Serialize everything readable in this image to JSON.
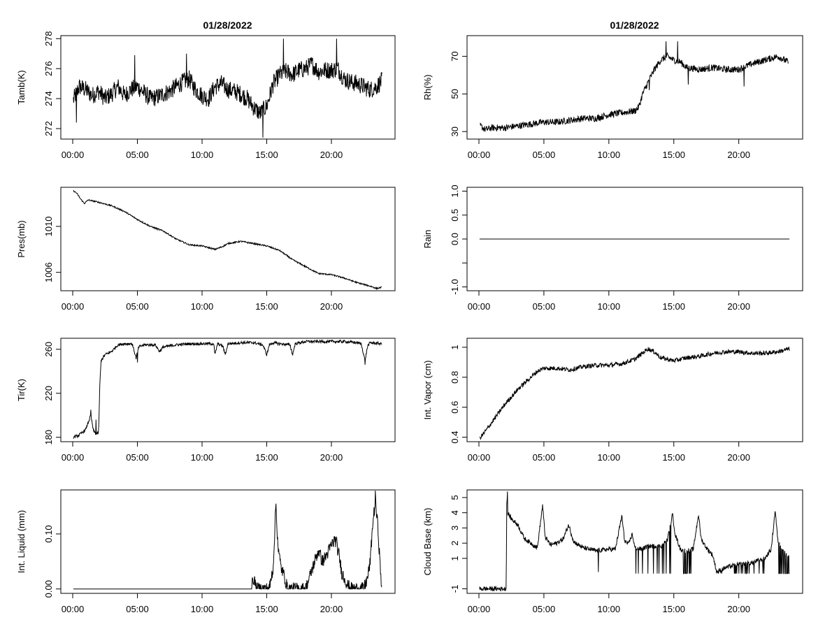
{
  "figure": {
    "titles": [
      "01/28/2022",
      "01/28/2022"
    ]
  },
  "chart_data": [
    {
      "type": "line",
      "ylabel": "Tamb(K)",
      "title": "01/28/2022",
      "xticks": [
        "00:00",
        "05:00",
        "10:00",
        "15:00",
        "20:00"
      ],
      "xlim": [
        0,
        24
      ],
      "ylim": [
        271.3,
        278.2
      ],
      "yticks": [
        272,
        274,
        276,
        278
      ],
      "x": [
        0.05,
        0.5,
        1,
        1.5,
        2,
        2.5,
        3,
        3.5,
        4,
        4.5,
        5,
        5.5,
        6,
        6.5,
        7,
        7.5,
        8,
        8.5,
        9,
        9.5,
        10,
        10.5,
        11,
        11.5,
        12,
        12.5,
        13,
        13.5,
        14,
        14.5,
        15,
        15.5,
        16,
        16.5,
        17,
        17.5,
        18,
        18.5,
        19,
        19.5,
        20,
        20.5,
        21,
        21.5,
        22,
        22.5,
        23,
        23.5,
        23.9
      ],
      "y": [
        273.9,
        274.8,
        274.6,
        274.2,
        274.5,
        274.0,
        274.3,
        274.8,
        274.2,
        274.6,
        274.8,
        274.4,
        274.0,
        274.1,
        274.3,
        274.5,
        274.8,
        275.1,
        275.3,
        274.6,
        274.2,
        274.0,
        274.8,
        275.0,
        274.6,
        274.5,
        274.3,
        274.0,
        273.4,
        273.0,
        273.5,
        275.0,
        275.6,
        275.8,
        275.6,
        275.9,
        276.0,
        276.3,
        275.8,
        275.9,
        275.9,
        276.0,
        275.3,
        275.1,
        275.0,
        274.8,
        274.6,
        274.8,
        275.2
      ],
      "noise": 0.6,
      "spikes": [
        [
          4.8,
          276.9
        ],
        [
          8.8,
          277.0
        ],
        [
          14.7,
          271.4
        ],
        [
          16.3,
          278.0
        ],
        [
          20.4,
          278.0
        ],
        [
          0.3,
          272.4
        ]
      ]
    },
    {
      "type": "line",
      "ylabel": "Rh(%)",
      "title": "01/28/2022",
      "xticks": [
        "00:00",
        "05:00",
        "10:00",
        "15:00",
        "20:00"
      ],
      "xlim": [
        0,
        24
      ],
      "ylim": [
        26,
        81
      ],
      "yticks": [
        30,
        50,
        70
      ],
      "x": [
        0.1,
        0.5,
        1,
        2,
        3,
        4,
        5,
        6,
        7,
        8,
        9,
        10,
        11,
        12,
        12.3,
        12.6,
        13,
        13.5,
        14,
        14.5,
        15,
        15.5,
        16,
        17,
        18,
        19,
        20,
        21,
        22,
        23,
        23.8
      ],
      "y": [
        33,
        31,
        32,
        32,
        33,
        34,
        35,
        35,
        36,
        37,
        37,
        39,
        40,
        41,
        43,
        50,
        56,
        63,
        68,
        70,
        68,
        67,
        64,
        63,
        64,
        63,
        63,
        66,
        68,
        70,
        67
      ],
      "noise": 1.8,
      "spikes": [
        [
          14.4,
          78
        ],
        [
          15.3,
          78
        ],
        [
          13.1,
          52
        ],
        [
          16.1,
          55
        ],
        [
          20.4,
          54
        ]
      ]
    },
    {
      "type": "line",
      "ylabel": "Pres(mb)",
      "xticks": [
        "00:00",
        "05:00",
        "10:00",
        "15:00",
        "20:00"
      ],
      "xlim": [
        0,
        24
      ],
      "ylim": [
        1004.4,
        1013.4
      ],
      "yticks": [
        1006,
        1010
      ],
      "x": [
        0.05,
        0.3,
        0.6,
        0.9,
        1.2,
        2,
        3,
        4,
        5,
        6,
        7,
        8,
        9,
        10,
        11,
        11.5,
        12,
        13,
        14,
        15,
        16,
        17,
        18,
        19,
        20,
        21,
        22,
        23,
        23.5,
        23.9
      ],
      "y": [
        1013.1,
        1012.9,
        1012.4,
        1012.0,
        1012.3,
        1012.1,
        1011.8,
        1011.3,
        1010.6,
        1010.0,
        1009.6,
        1008.9,
        1008.4,
        1008.3,
        1008.0,
        1008.2,
        1008.5,
        1008.7,
        1008.5,
        1008.3,
        1007.9,
        1007.1,
        1006.5,
        1005.9,
        1005.8,
        1005.5,
        1005.1,
        1004.8,
        1004.6,
        1004.7
      ],
      "noise": 0.06
    },
    {
      "type": "line",
      "ylabel": "Rain",
      "xticks": [
        "00:00",
        "05:00",
        "10:00",
        "15:00",
        "20:00"
      ],
      "xlim": [
        0,
        24
      ],
      "ylim": [
        -1.08,
        1.08
      ],
      "yticks": [
        -1.0,
        -0.5,
        0.0,
        0.5,
        1.0
      ],
      "ytick_labels": [
        "-1.0",
        "",
        "0.0",
        "0.5",
        "1.0"
      ],
      "x": [
        0.05,
        23.9
      ],
      "y": [
        0,
        0
      ],
      "noise": 0
    },
    {
      "type": "line",
      "ylabel": "Tir(K)",
      "xticks": [
        "00:00",
        "05:00",
        "10:00",
        "15:00",
        "20:00"
      ],
      "xlim": [
        0,
        24
      ],
      "ylim": [
        176,
        270
      ],
      "yticks": [
        180,
        220,
        260
      ],
      "x": [
        0.05,
        0.5,
        1,
        1.4,
        1.6,
        1.8,
        2.0,
        2.1,
        2.2,
        2.5,
        3,
        3.5,
        4,
        4.6,
        4.9,
        5.1,
        5.5,
        6.4,
        6.7,
        7,
        8,
        9,
        10,
        10.9,
        11.0,
        11.2,
        11.6,
        11.8,
        12,
        13,
        14,
        14.7,
        15.0,
        15.2,
        15.5,
        16,
        16.8,
        17.0,
        17.2,
        18,
        19,
        20,
        21,
        22,
        22.3,
        22.6,
        22.8,
        23,
        23.9
      ],
      "y": [
        180,
        182,
        187,
        200,
        186,
        183,
        184,
        230,
        250,
        255,
        258,
        264,
        265,
        265,
        252,
        262,
        264,
        264,
        258,
        262,
        264,
        265,
        265,
        265,
        255,
        265,
        263,
        255,
        265,
        266,
        266,
        264,
        255,
        264,
        266,
        265,
        264,
        255,
        265,
        267,
        267,
        267,
        267,
        266,
        265,
        250,
        263,
        266,
        265
      ],
      "noise": 1.3,
      "spikes": [
        [
          1.4,
          205
        ],
        [
          1.8,
          196
        ],
        [
          22.6,
          246
        ],
        [
          5.0,
          248
        ]
      ]
    },
    {
      "type": "line",
      "ylabel": "Int. Vapor (cm)",
      "xticks": [
        "00:00",
        "05:00",
        "10:00",
        "15:00",
        "20:00"
      ],
      "xlim": [
        0,
        24
      ],
      "ylim": [
        0.37,
        1.06
      ],
      "yticks": [
        0.4,
        0.6,
        0.8,
        1.0
      ],
      "x": [
        0.05,
        0.5,
        1,
        1.5,
        2,
        2.5,
        3,
        3.5,
        4,
        4.5,
        5,
        6,
        7,
        8,
        9,
        10,
        11,
        12,
        13,
        13.5,
        14,
        15,
        16,
        17,
        18,
        19,
        20,
        21,
        22,
        23,
        23.9
      ],
      "y": [
        0.39,
        0.44,
        0.5,
        0.56,
        0.62,
        0.67,
        0.72,
        0.76,
        0.8,
        0.84,
        0.86,
        0.86,
        0.85,
        0.87,
        0.88,
        0.88,
        0.89,
        0.92,
        0.99,
        0.97,
        0.93,
        0.91,
        0.93,
        0.94,
        0.96,
        0.97,
        0.97,
        0.96,
        0.96,
        0.97,
        0.99
      ],
      "noise": 0.015
    },
    {
      "type": "line",
      "ylabel": "Int. Liquid (mm)",
      "xticks": [
        "00:00",
        "05:00",
        "10:00",
        "15:00",
        "20:00"
      ],
      "xlim": [
        0,
        24
      ],
      "ylim": [
        -0.008,
        0.18
      ],
      "yticks": [
        0.0,
        0.1
      ],
      "ytick_labels": [
        "0.00",
        "0.10"
      ],
      "x": [
        0.05,
        13.8,
        14.0,
        14.2,
        15.2,
        15.5,
        15.7,
        15.9,
        16.1,
        16.4,
        16.6,
        17,
        18,
        18.3,
        18.7,
        19,
        19.3,
        19.6,
        20,
        20.3,
        20.6,
        20.8,
        21,
        21.3,
        21.6,
        22,
        22.5,
        22.8,
        23,
        23.2,
        23.4,
        23.6,
        23.8,
        23.9
      ],
      "y": [
        0,
        0,
        0.02,
        0,
        0,
        0.04,
        0.15,
        0.07,
        0.04,
        0.02,
        0,
        0,
        0,
        0.02,
        0.05,
        0.07,
        0.05,
        0.06,
        0.08,
        0.09,
        0.06,
        0.03,
        0.02,
        0.005,
        0,
        0,
        0,
        0.02,
        0.05,
        0.12,
        0.16,
        0.11,
        0.03,
        0
      ],
      "noise": 0.012,
      "spikes": [
        [
          23.4,
          0.18
        ],
        [
          15.7,
          0.155
        ],
        [
          20.4,
          0.095
        ]
      ]
    },
    {
      "type": "line",
      "ylabel": "Cloud Base (km)",
      "xticks": [
        "00:00",
        "05:00",
        "10:00",
        "15:00",
        "20:00"
      ],
      "xlim": [
        0,
        24
      ],
      "ylim": [
        -1.3,
        5.5
      ],
      "yticks": [
        -1,
        1,
        2,
        3,
        4,
        5
      ],
      "x": [
        0.05,
        2.1,
        2.15,
        2.2,
        2.5,
        3,
        3.5,
        4,
        4.5,
        4.9,
        5.1,
        5.5,
        6,
        6.5,
        6.9,
        7.3,
        8,
        9,
        10,
        10.5,
        11.0,
        11.2,
        11.5,
        11.8,
        12,
        12.5,
        13,
        14,
        14.5,
        14.9,
        15.1,
        15.5,
        16,
        16.5,
        16.9,
        17.1,
        17.5,
        18,
        18.3,
        19,
        20,
        21,
        22,
        22.5,
        22.8,
        23,
        23.5,
        23.9
      ],
      "y": [
        -1,
        -1,
        5.4,
        4.0,
        3.6,
        3.2,
        2.3,
        2.0,
        1.7,
        4.5,
        2.4,
        1.9,
        2.0,
        2.3,
        3.2,
        2.1,
        1.7,
        1.5,
        1.6,
        1.6,
        3.8,
        2.2,
        1.9,
        2.6,
        1.7,
        1.6,
        1.8,
        1.8,
        2.2,
        3.9,
        2.6,
        1.6,
        1.5,
        1.6,
        3.9,
        2.3,
        1.7,
        1.2,
        0.1,
        0.4,
        0.6,
        0.7,
        1.0,
        1.6,
        4.2,
        2.2,
        1.4,
        1.2
      ],
      "noise": 0.15,
      "dropouts": {
        "value": 0,
        "ranges": [
          [
            12.0,
            15.0
          ],
          [
            15.6,
            16.4
          ],
          [
            18.2,
            22.3
          ],
          [
            23.0,
            23.9
          ]
        ],
        "count": 70
      },
      "spikes": [
        [
          2.2,
          5.4
        ],
        [
          9.2,
          0.1
        ]
      ]
    }
  ]
}
